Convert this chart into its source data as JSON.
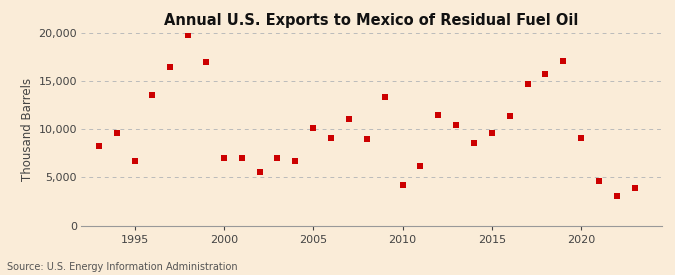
{
  "title": "Annual U.S. Exports to Mexico of Residual Fuel Oil",
  "ylabel": "Thousand Barrels",
  "source": "Source: U.S. Energy Information Administration",
  "background_color": "#faecd8",
  "marker_color": "#cc0000",
  "years": [
    1993,
    1994,
    1995,
    1996,
    1997,
    1998,
    1999,
    2000,
    2001,
    2002,
    2003,
    2004,
    2005,
    2006,
    2007,
    2008,
    2009,
    2010,
    2011,
    2012,
    2013,
    2014,
    2015,
    2016,
    2017,
    2018,
    2019,
    2020,
    2021,
    2022,
    2023
  ],
  "values": [
    8300,
    9600,
    6700,
    13600,
    16500,
    19800,
    17000,
    7000,
    7000,
    5600,
    7000,
    6700,
    10100,
    9100,
    11100,
    9000,
    13300,
    4200,
    6200,
    11500,
    10400,
    8600,
    9600,
    11400,
    14700,
    15700,
    17100,
    9100,
    4600,
    3100,
    3900
  ],
  "ylim": [
    0,
    20000
  ],
  "yticks": [
    0,
    5000,
    10000,
    15000,
    20000
  ],
  "xlim": [
    1992.0,
    2024.5
  ],
  "xticks": [
    1995,
    2000,
    2005,
    2010,
    2015,
    2020
  ],
  "grid_color": "#bbbbbb",
  "title_fontsize": 10.5,
  "label_fontsize": 8.5,
  "tick_fontsize": 8,
  "source_fontsize": 7
}
